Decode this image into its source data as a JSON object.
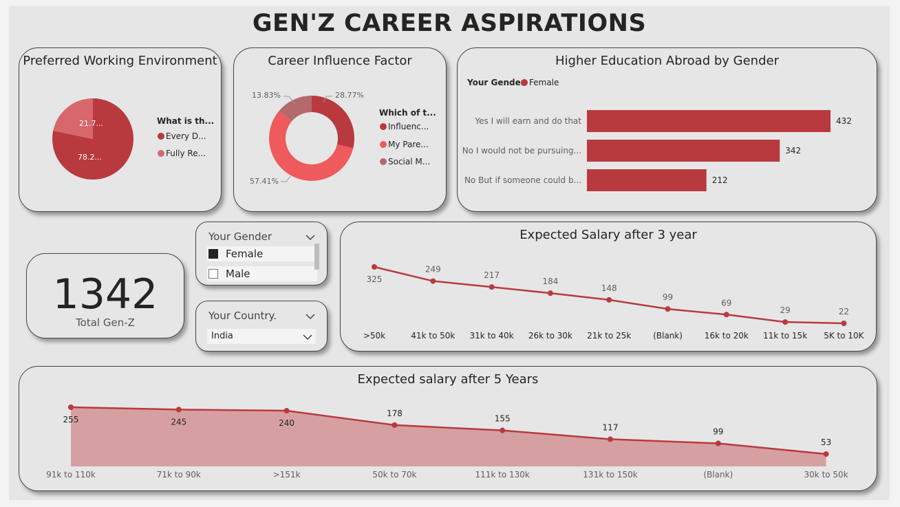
{
  "dashboard": {
    "title": "GEN'Z CAREER ASPIRATIONS"
  },
  "colors": {
    "primary": "#b83a3f",
    "light": "#d8676b",
    "mauve": "#b4696d",
    "coral": "#ef5a5c",
    "area": "#d6a0a2"
  },
  "working_env": {
    "title": "Preferred Working Environment",
    "legend_title": "What is th...",
    "legend": [
      "Every D...",
      "Fully Re..."
    ],
    "slice_labels": [
      "78.2...",
      "21.7..."
    ]
  },
  "influence": {
    "title": "Career Influence Factor",
    "legend_title": "Which of t...",
    "legend": [
      "Influenc...",
      "My Pare...",
      "Social M..."
    ],
    "slice_labels": [
      "28.77%",
      "57.41%",
      "13.83%"
    ]
  },
  "education": {
    "title": "Higher Education Abroad by Gender",
    "legend_title": "Your Gender",
    "legend_item": "Female",
    "bar_value_labels": [
      "432",
      "342",
      "212"
    ]
  },
  "kpi": {
    "value": "1342",
    "label": "Total Gen-Z"
  },
  "gender_slicer": {
    "title": "Your Gender",
    "options": [
      "Female",
      "Male"
    ],
    "selected": "Female"
  },
  "country_slicer": {
    "title": "Your Country.",
    "value": "India"
  },
  "salary3": {
    "title": "Expected Salary after 3 year"
  },
  "salary5": {
    "title": "Expected salary after 5 Years"
  },
  "chart_data": [
    {
      "type": "pie",
      "title": "Preferred Working Environment",
      "categories": [
        "Every D...",
        "Fully Re..."
      ],
      "values": [
        78.2,
        21.7
      ]
    },
    {
      "type": "pie",
      "title": "Career Influence Factor",
      "categories": [
        "Influenc...",
        "My Pare...",
        "Social M..."
      ],
      "values": [
        28.77,
        57.41,
        13.83
      ]
    },
    {
      "type": "bar",
      "title": "Higher Education Abroad by Gender",
      "categories": [
        "Yes I will earn and do that",
        "No I would not be pursuing...",
        "No But if someone could b..."
      ],
      "series": [
        {
          "name": "Female",
          "values": [
            432,
            342,
            212
          ]
        }
      ]
    },
    {
      "type": "line",
      "title": "Expected Salary after 3 year",
      "categories": [
        ">50k",
        "41k to 50k",
        "31k to 40k",
        "26k to 30k",
        "21k to 25k",
        "(Blank)",
        "16k to 20k",
        "11k to 15k",
        "5K to 10K"
      ],
      "values": [
        325,
        249,
        217,
        184,
        148,
        99,
        69,
        29,
        22
      ]
    },
    {
      "type": "area",
      "title": "Expected salary after 5 Years",
      "categories": [
        "91k to 110k",
        "71k to 90k",
        ">151k",
        "50k to 70k",
        "111k to 130k",
        "131k to 150k",
        "(Blank)",
        "30k to 50k"
      ],
      "values": [
        255,
        245,
        240,
        178,
        155,
        117,
        99,
        53
      ]
    }
  ]
}
